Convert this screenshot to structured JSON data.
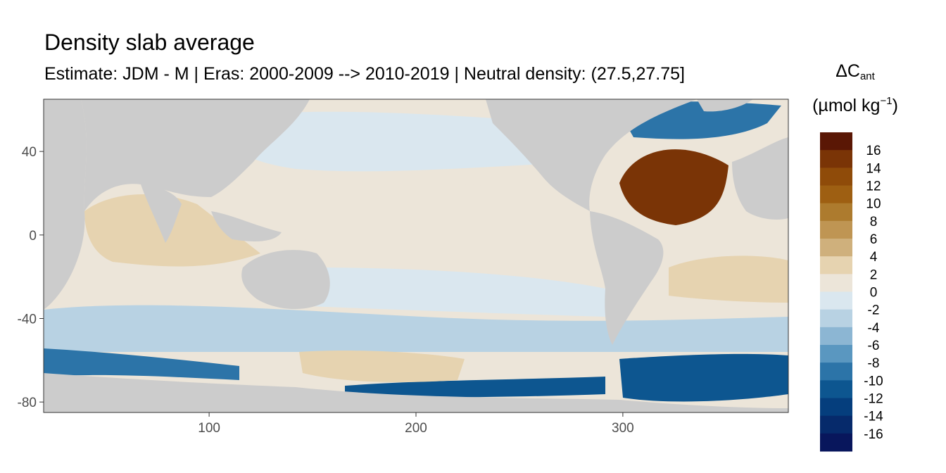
{
  "chart_data": {
    "type": "heatmap",
    "title": "Density slab average",
    "subtitle": "Estimate: JDM - M | Eras: 2000-2009 --> 2010-2019 | Neutral density: (27.5,27.75]",
    "xlabel": "",
    "ylabel": "",
    "xlim": [
      20,
      380
    ],
    "ylim": [
      -85,
      65
    ],
    "x_ticks": [
      "100",
      "200",
      "300"
    ],
    "x_tick_values": [
      100,
      200,
      300
    ],
    "y_ticks": [
      "40",
      "0",
      "-40",
      "-80"
    ],
    "y_tick_values": [
      40,
      0,
      -40,
      -80
    ],
    "grid": false,
    "land_color": "#cccccc",
    "legend": {
      "title_main": "ΔC",
      "title_sub": "ant",
      "unit_main": "(µmol kg",
      "unit_sup": "−1",
      "unit_close": ")",
      "placement": "right",
      "labels": [
        "16",
        "14",
        "12",
        "10",
        "8",
        "6",
        "4",
        "2",
        "0",
        "-2",
        "-4",
        "-6",
        "-8",
        "-10",
        "-12",
        "-14",
        "-16"
      ],
      "colors": [
        "#5a1705",
        "#7a3406",
        "#8f4b09",
        "#9e5f12",
        "#ad7b2e",
        "#bf9553",
        "#cfb07c",
        "#e6d3b0",
        "#ece5d9",
        "#dae7ef",
        "#b8d2e3",
        "#8cb6d3",
        "#5a97c0",
        "#2c74a8",
        "#0d5690",
        "#053e7d",
        "#062a6b",
        "#08165c"
      ]
    },
    "regions": [
      {
        "name": "global-ocean-background",
        "value": 0.5
      },
      {
        "name": "north-pacific",
        "value": -0.5
      },
      {
        "name": "equatorial-pacific",
        "value": 1
      },
      {
        "name": "indian-ocean-north",
        "value": 3
      },
      {
        "name": "indian-ocean-south",
        "value": 1
      },
      {
        "name": "southern-ocean-band",
        "value": -3
      },
      {
        "name": "south-pacific",
        "value": -1
      },
      {
        "name": "circumpolar-current-indian",
        "value": -9
      },
      {
        "name": "circumpolar-current-pacific",
        "value": -11
      },
      {
        "name": "weddell-sea",
        "value": -11
      },
      {
        "name": "ross-sea-patch",
        "value": 3
      },
      {
        "name": "north-atlantic-subtropical",
        "value": 15
      },
      {
        "name": "subpolar-north-atlantic",
        "value": -9
      },
      {
        "name": "south-atlantic",
        "value": 2
      }
    ]
  }
}
